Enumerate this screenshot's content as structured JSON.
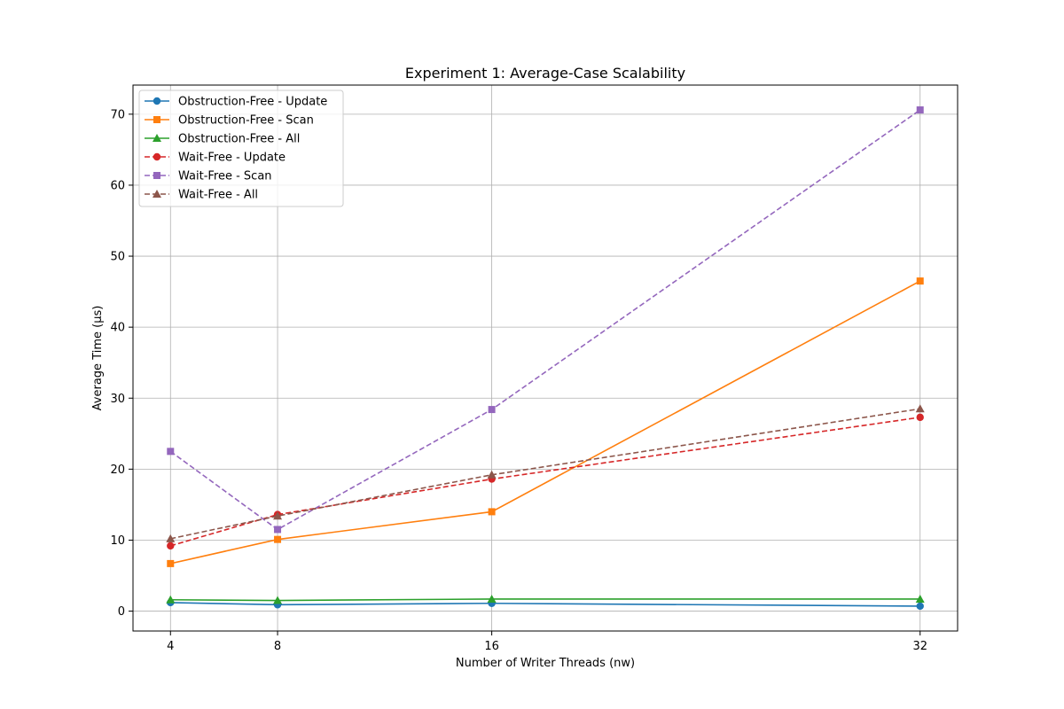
{
  "chart_data": {
    "type": "line",
    "title": "Experiment 1: Average-Case Scalability",
    "xlabel": "Number of Writer Threads (nw)",
    "ylabel": "Average Time (µs)",
    "x": [
      4,
      8,
      16,
      32
    ],
    "xticks": [
      4,
      8,
      16,
      32
    ],
    "yticks": [
      0,
      10,
      20,
      30,
      40,
      50,
      60,
      70
    ],
    "xlim": [
      2.6,
      33.4
    ],
    "ylim": [
      -2.8,
      74.1
    ],
    "grid": true,
    "legend_position": "top-left",
    "series": [
      {
        "name": "Obstruction-Free - Update",
        "values": [
          1.2,
          0.9,
          1.1,
          0.7
        ],
        "color": "#1f77b4",
        "marker": "circle",
        "dashed": false
      },
      {
        "name": "Obstruction-Free - Scan",
        "values": [
          6.7,
          10.1,
          14.0,
          46.5
        ],
        "color": "#ff7f0e",
        "marker": "square",
        "dashed": false
      },
      {
        "name": "Obstruction-Free - All",
        "values": [
          1.6,
          1.5,
          1.7,
          1.7
        ],
        "color": "#2ca02c",
        "marker": "triangle",
        "dashed": false
      },
      {
        "name": "Wait-Free - Update",
        "values": [
          9.2,
          13.6,
          18.6,
          27.3
        ],
        "color": "#d62728",
        "marker": "circle",
        "dashed": true
      },
      {
        "name": "Wait-Free - Scan",
        "values": [
          22.5,
          11.5,
          28.4,
          70.6
        ],
        "color": "#9467bd",
        "marker": "square",
        "dashed": true
      },
      {
        "name": "Wait-Free - All",
        "values": [
          10.2,
          13.4,
          19.2,
          28.5
        ],
        "color": "#8c564b",
        "marker": "triangle",
        "dashed": true
      }
    ]
  }
}
